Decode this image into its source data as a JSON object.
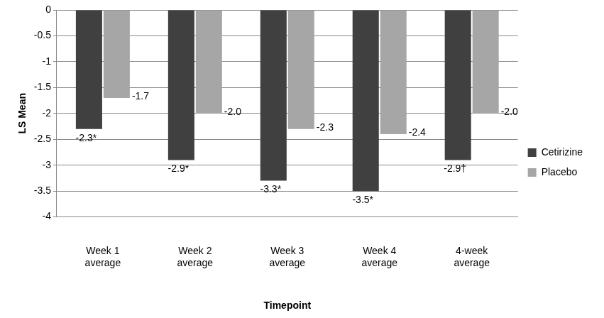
{
  "chart_data": {
    "type": "bar",
    "x_label": "Timepoint",
    "y_label": "LS Mean",
    "categories": [
      "Week 1\naverage",
      "Week 2\naverage",
      "Week 3\naverage",
      "Week 4\naverage",
      "4-week\naverage"
    ],
    "series": [
      {
        "name": "Cetirizine",
        "color": "#404040",
        "values": [
          -2.3,
          -2.9,
          -3.3,
          -3.5,
          -2.9
        ],
        "value_labels": [
          "-2.3*",
          "-2.9*",
          "-3.3*",
          "-3.5*",
          "-2.9†"
        ]
      },
      {
        "name": "Placebo",
        "color": "#a6a6a6",
        "values": [
          -1.7,
          -2.0,
          -2.3,
          -2.4,
          -2.0
        ],
        "value_labels": [
          "-1.7",
          "-2.0",
          "-2.3",
          "-2.4",
          "-2.0"
        ]
      }
    ],
    "ylim": [
      -4,
      0
    ],
    "yticks": [
      -4,
      -3.5,
      -3,
      -2.5,
      -2,
      -1.5,
      -1,
      -0.5,
      0
    ],
    "grid": true,
    "legend": "right",
    "data_labels": true
  }
}
